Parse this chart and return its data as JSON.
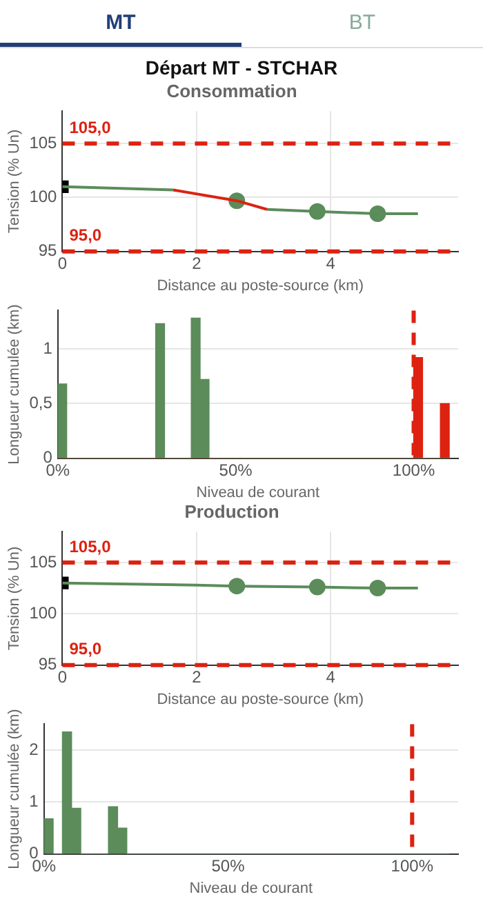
{
  "chart_data": [
    {
      "type": "other",
      "title": "Départ MT - STCHAR",
      "annotations": [
        "MT",
        "BT"
      ]
    },
    {
      "type": "line",
      "title": "Consommation",
      "xlabel": "Distance au poste-source (km)",
      "ylabel": "Tension (% Un)",
      "xlim": [
        0,
        5.9
      ],
      "xticks": [
        0,
        2,
        4
      ],
      "ylim": [
        95,
        108
      ],
      "yticks": [
        95,
        100,
        105
      ],
      "grid": true,
      "legend": false,
      "series": [
        {
          "type": "line",
          "color": "#5b8c5a",
          "marker": "none",
          "x": [
            0,
            1.65
          ],
          "values": [
            101,
            100.7
          ]
        },
        {
          "type": "line",
          "color": "#dd2211",
          "marker": "none",
          "x": [
            1.65,
            2.6,
            3.05
          ],
          "values": [
            100.7,
            99.7,
            98.9
          ]
        },
        {
          "type": "line",
          "color": "#5b8c5a",
          "marker": "none",
          "x": [
            3.05,
            3.8,
            4.7,
            5.3
          ],
          "values": [
            98.9,
            98.7,
            98.5,
            98.5
          ]
        },
        {
          "type": "scatter",
          "color": "#5b8c5a",
          "marker": "circle",
          "x": [
            2.6,
            3.8,
            4.7
          ],
          "values": [
            99.7,
            98.7,
            98.5
          ]
        },
        {
          "type": "scatter",
          "color": "#000000",
          "marker": "square",
          "x": [
            0
          ],
          "values": [
            101
          ]
        }
      ],
      "ref_lines": [
        {
          "axis": "y",
          "value": 105,
          "label": "105,0",
          "color": "#dd2211",
          "line_style": "dashed"
        },
        {
          "axis": "y",
          "value": 95,
          "label": "95,0",
          "color": "#dd2211",
          "line_style": "dashed"
        }
      ]
    },
    {
      "type": "histogram",
      "xlabel": "Niveau de courant",
      "ylabel": "Longueur cumulée (km)",
      "xlim": [
        0,
        112.5
      ],
      "xticks": [
        {
          "value": 0,
          "label": "0%"
        },
        {
          "value": 50,
          "label": "50%"
        },
        {
          "value": 100,
          "label": "100%"
        }
      ],
      "ylim": [
        0,
        1.35
      ],
      "yticks": [
        0,
        {
          "value": 0.5,
          "label": "0,5"
        },
        1
      ],
      "grid": "y",
      "legend": false,
      "bins": [
        0,
        2.5,
        5,
        7.5,
        10,
        12.5,
        15,
        17.5,
        20,
        22.5,
        25,
        27.5,
        30,
        32.5,
        35,
        37.5,
        40,
        42.5,
        45,
        47.5,
        50,
        52.5,
        55,
        57.5,
        60,
        62.5,
        65,
        67.5,
        70,
        72.5,
        75,
        77.5,
        80,
        82.5,
        85,
        87.5,
        90,
        92.5,
        95,
        97.5,
        100,
        102.5,
        105,
        107.5,
        110
      ],
      "series": [
        {
          "color": "#5b8c5a",
          "values": [
            0.68,
            0,
            0,
            0,
            0,
            0,
            0,
            0,
            0,
            0,
            0,
            1.23,
            0,
            0,
            0,
            1.28,
            0.72,
            0,
            0,
            0,
            0,
            0,
            0,
            0,
            0,
            0,
            0,
            0,
            0,
            0,
            0,
            0,
            0,
            0,
            0,
            0,
            0,
            0,
            0,
            0,
            0,
            0,
            0,
            0
          ]
        },
        {
          "color": "#dd2211",
          "values": [
            0,
            0,
            0,
            0,
            0,
            0,
            0,
            0,
            0,
            0,
            0,
            0,
            0,
            0,
            0,
            0,
            0,
            0,
            0,
            0,
            0,
            0,
            0,
            0,
            0,
            0,
            0,
            0,
            0,
            0,
            0,
            0,
            0,
            0,
            0,
            0,
            0,
            0,
            0,
            0,
            0.92,
            0,
            0,
            0.5
          ]
        }
      ],
      "ref_lines": [
        {
          "axis": "x",
          "value": 100,
          "color": "#dd2211",
          "line_style": "dashed"
        }
      ]
    },
    {
      "type": "line",
      "title": "Production",
      "xlabel": "Distance au poste-source (km)",
      "ylabel": "Tension (% Un)",
      "xlim": [
        0,
        5.9
      ],
      "xticks": [
        0,
        2,
        4
      ],
      "ylim": [
        95,
        108
      ],
      "yticks": [
        95,
        100,
        105
      ],
      "grid": true,
      "legend": false,
      "series": [
        {
          "type": "line",
          "color": "#5b8c5a",
          "marker": "none",
          "x": [
            0,
            2,
            2.6,
            3.8,
            4.7,
            5.3
          ],
          "values": [
            103,
            102.8,
            102.7,
            102.6,
            102.5,
            102.5
          ]
        },
        {
          "type": "scatter",
          "color": "#5b8c5a",
          "marker": "circle",
          "x": [
            2.6,
            3.8,
            4.7
          ],
          "values": [
            102.7,
            102.6,
            102.5
          ]
        },
        {
          "type": "scatter",
          "color": "#000000",
          "marker": "square",
          "x": [
            0
          ],
          "values": [
            103
          ]
        }
      ],
      "ref_lines": [
        {
          "axis": "y",
          "value": 105,
          "label": "105,0",
          "color": "#dd2211",
          "line_style": "dashed"
        },
        {
          "axis": "y",
          "value": 95,
          "label": "95,0",
          "color": "#dd2211",
          "line_style": "dashed"
        }
      ]
    },
    {
      "type": "histogram",
      "xlabel": "Niveau de courant",
      "ylabel": "Longueur cumulée (km)",
      "xlim": [
        0,
        112.5
      ],
      "xticks": [
        {
          "value": 0,
          "label": "0%"
        },
        {
          "value": 50,
          "label": "50%"
        },
        {
          "value": 100,
          "label": "100%"
        }
      ],
      "ylim": [
        0,
        2.5
      ],
      "yticks": [
        0,
        1,
        2
      ],
      "grid": "y",
      "legend": false,
      "bins": [
        0,
        2.5,
        5,
        7.5,
        10,
        12.5,
        15,
        17.5,
        20,
        22.5,
        25,
        27.5,
        30,
        32.5,
        35,
        37.5,
        40,
        42.5,
        45,
        47.5,
        50,
        52.5,
        55,
        57.5,
        60,
        62.5,
        65,
        67.5,
        70,
        72.5,
        75,
        77.5,
        80,
        82.5,
        85,
        87.5,
        90,
        92.5,
        95,
        97.5,
        100,
        102.5,
        105,
        107.5,
        110
      ],
      "series": [
        {
          "color": "#5b8c5a",
          "values": [
            0.68,
            0,
            2.35,
            0.88,
            0,
            0,
            0,
            0.91,
            0.5,
            0,
            0,
            0,
            0,
            0,
            0,
            0,
            0,
            0,
            0,
            0,
            0,
            0,
            0,
            0,
            0,
            0,
            0,
            0,
            0,
            0,
            0,
            0,
            0,
            0,
            0,
            0,
            0,
            0,
            0,
            0,
            0,
            0,
            0,
            0
          ]
        }
      ],
      "ref_lines": [
        {
          "axis": "x",
          "value": 100,
          "color": "#dd2211",
          "line_style": "dashed"
        }
      ]
    }
  ]
}
